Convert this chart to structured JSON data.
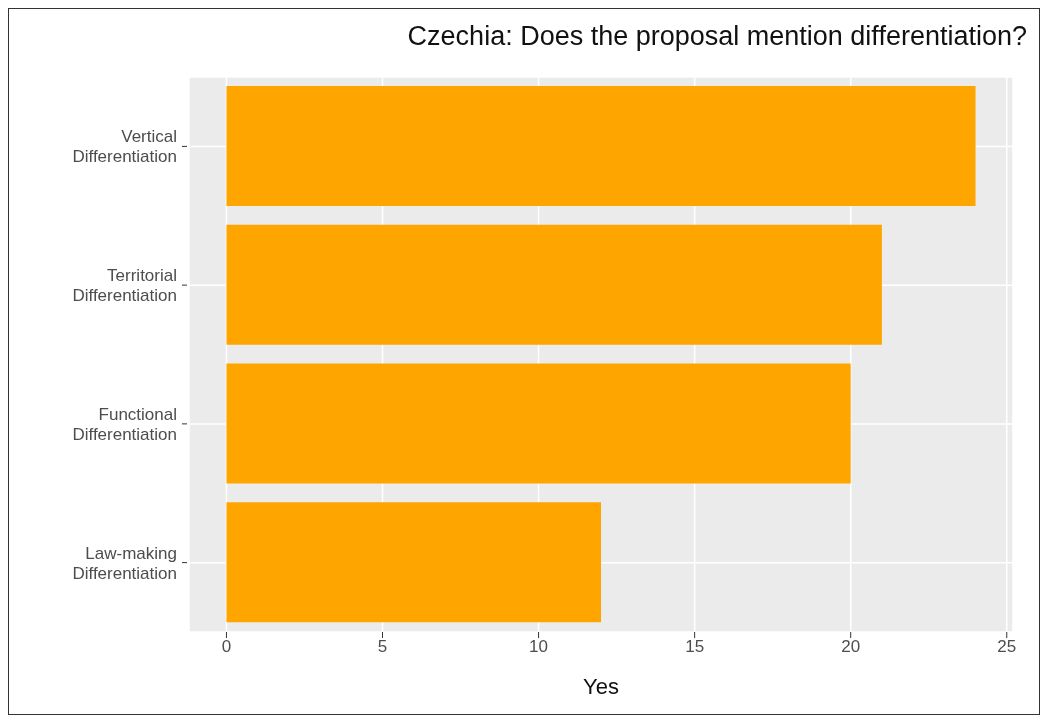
{
  "chart_data": {
    "type": "bar",
    "orientation": "horizontal",
    "title": "Czechia: Does the proposal mention differentiation?",
    "xlabel": "Yes",
    "categories": [
      "Vertical Differentiation",
      "Territorial Differentiation",
      "Functional Differentiation",
      "Law-making Differentiation"
    ],
    "values": [
      24,
      21,
      20,
      12
    ],
    "color": "#ffa500",
    "xlim": [
      -1.2,
      25.2
    ],
    "xticks": [
      0,
      5,
      10,
      15,
      20,
      25
    ],
    "grid": true,
    "legend": false
  }
}
